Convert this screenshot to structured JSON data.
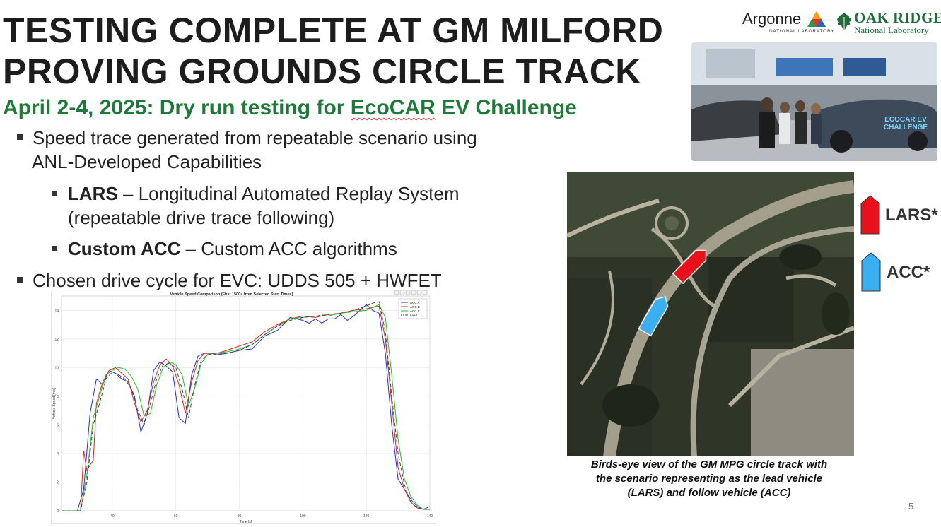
{
  "title": {
    "line1": "TESTING COMPLETE AT GM MILFORD",
    "line2": "PROVING GROUNDS CIRCLE TRACK"
  },
  "subtitle": {
    "prefix": "April 2-4, 2025: Dry run testing for ",
    "ecocar": "EcoCAR",
    "suffix": " EV Challenge"
  },
  "bullets": {
    "b1_line1": "Speed trace generated from repeatable scenario using",
    "b1_line2": "ANL-Developed Capabilities",
    "lars_bold": "LARS",
    "lars_text": " – Longitudinal Automated Replay System",
    "lars_line2": "(repeatable drive trace following)",
    "acc_bold": "Custom ACC",
    "acc_text": " – Custom ACC algorithms",
    "b2": "Chosen drive cycle for EVC: UDDS 505 + HWFET"
  },
  "logos": {
    "argonne": "Argonne",
    "argonne_sub": "NATIONAL LABORATORY",
    "ornl_top": "OAK RIDGE",
    "ornl_bottom": "National Laboratory"
  },
  "photo": {
    "banner_text": "ECOCAR EV CHALLENGE"
  },
  "map": {
    "lars_label": "LARS*",
    "acc_label": "ACC*",
    "caption_line1": "Birds-eye view of the GM MPG circle track with",
    "caption_line2": "the scenario representing as the lead vehicle",
    "caption_line3": "(LARS) and follow vehicle (ACC)",
    "lars_color": "#e8101a",
    "acc_color": "#3aaeef"
  },
  "page_number": "5",
  "chart_data": {
    "type": "line",
    "title": "Vehicle Speed Comparison (First 1500s from Selected Start Times)",
    "xlabel": "Time [s]",
    "ylabel": "Vehicle Speed [m/s]",
    "xlim": [
      24,
      140
    ],
    "ylim": [
      0,
      15
    ],
    "xticks": [
      40,
      60,
      80,
      100,
      120,
      140
    ],
    "yticks": [
      0,
      2,
      4,
      6,
      8,
      10,
      12,
      14
    ],
    "grid": true,
    "legend_position": "top-right",
    "series": [
      {
        "name": "ACC A",
        "color": "#1f2fd6",
        "dash": "",
        "x": [
          24,
          29,
          31,
          33,
          35,
          37,
          39,
          41,
          43,
          45,
          47,
          49,
          51,
          53,
          55,
          57,
          59,
          61,
          63,
          65,
          67,
          69,
          71,
          73,
          76,
          80,
          84,
          88,
          92,
          96,
          98,
          100,
          102,
          104,
          106,
          108,
          110,
          112,
          114,
          116,
          118,
          120,
          122,
          124,
          126,
          128,
          130,
          132,
          134,
          136,
          138,
          140
        ],
        "y": [
          0,
          0,
          1.5,
          6.8,
          9.2,
          8.8,
          9.8,
          9.6,
          9.2,
          9.0,
          8.0,
          5.5,
          6.8,
          9.8,
          10.4,
          10.1,
          9.7,
          6.5,
          6.1,
          9.5,
          10.8,
          11.0,
          11.0,
          10.9,
          11.0,
          11.2,
          11.3,
          12.2,
          12.6,
          13.5,
          13.4,
          13.3,
          13.1,
          13.4,
          13.1,
          13.4,
          13.4,
          13.7,
          13.3,
          13.6,
          14.0,
          14.4,
          14.0,
          13.8,
          11.0,
          6.0,
          2.2,
          1.5,
          0.8,
          0.3,
          0.1,
          0.3
        ]
      },
      {
        "name": "ACC B",
        "color": "#e02020",
        "dash": "",
        "x": [
          24,
          30,
          31,
          32,
          33,
          34,
          35,
          37,
          39,
          41,
          43,
          45,
          47,
          49,
          51,
          53,
          55,
          57,
          59,
          61,
          63,
          65,
          67,
          69,
          71,
          73,
          76,
          80,
          84,
          88,
          92,
          96,
          100,
          104,
          108,
          112,
          116,
          120,
          122,
          124,
          126,
          128,
          130,
          132,
          134,
          136,
          138,
          140
        ],
        "y": [
          0,
          0,
          4.2,
          2.8,
          3.2,
          3.5,
          7.5,
          9.0,
          9.8,
          10.0,
          9.6,
          9.2,
          7.5,
          6.2,
          7.0,
          9.0,
          10.2,
          10.6,
          10.1,
          8.8,
          6.8,
          9.0,
          10.5,
          11.0,
          11.0,
          11.0,
          11.2,
          11.5,
          11.8,
          12.5,
          13.0,
          13.4,
          13.6,
          13.5,
          13.7,
          13.8,
          14.0,
          14.1,
          14.2,
          14.3,
          12.0,
          7.5,
          3.0,
          1.5,
          0.6,
          0.2,
          0.1,
          0.1
        ]
      },
      {
        "name": "ACC C",
        "color": "#22c022",
        "dash": "",
        "x": [
          24,
          30,
          32,
          34,
          36,
          38,
          40,
          42,
          44,
          46,
          48,
          50,
          52,
          54,
          56,
          58,
          60,
          62,
          64,
          66,
          68,
          70,
          72,
          76,
          80,
          84,
          88,
          92,
          96,
          100,
          104,
          108,
          112,
          116,
          120,
          122,
          124,
          126,
          128,
          130,
          132,
          134,
          136,
          138,
          140
        ],
        "y": [
          0,
          0,
          2.5,
          6.5,
          8.0,
          9.5,
          9.8,
          10.0,
          9.9,
          9.4,
          8.5,
          6.6,
          6.8,
          8.8,
          10.0,
          10.4,
          10.2,
          9.5,
          7.3,
          8.6,
          10.3,
          10.9,
          11.0,
          11.1,
          11.3,
          11.6,
          12.3,
          12.9,
          13.4,
          13.5,
          13.6,
          13.6,
          13.8,
          13.9,
          14.0,
          14.2,
          14.4,
          13.5,
          9.5,
          5.0,
          2.2,
          1.0,
          0.4,
          0.1,
          0.1
        ]
      },
      {
        "name": "Lead",
        "color": "#444444",
        "dash": "5,3",
        "x": [
          24,
          30,
          32,
          34,
          36,
          38,
          40,
          42,
          44,
          46,
          48,
          50,
          52,
          54,
          56,
          58,
          60,
          62,
          64,
          66,
          68,
          70,
          72,
          76,
          80,
          84,
          88,
          92,
          96,
          100,
          104,
          108,
          112,
          116,
          120,
          122,
          124,
          126,
          128,
          130,
          132,
          134,
          136,
          138,
          140
        ],
        "y": [
          0,
          0,
          2.0,
          6.0,
          7.5,
          9.2,
          9.7,
          9.5,
          9.2,
          8.5,
          7.0,
          6.0,
          7.5,
          9.2,
          10.2,
          10.3,
          10.0,
          8.5,
          6.5,
          8.8,
          10.5,
          10.9,
          11.0,
          11.0,
          11.2,
          11.6,
          12.3,
          12.9,
          13.3,
          13.5,
          13.6,
          13.7,
          13.8,
          14.0,
          14.3,
          14.5,
          14.6,
          12.5,
          8.0,
          4.0,
          1.8,
          0.6,
          0.2,
          0.1,
          0.1
        ]
      }
    ]
  }
}
